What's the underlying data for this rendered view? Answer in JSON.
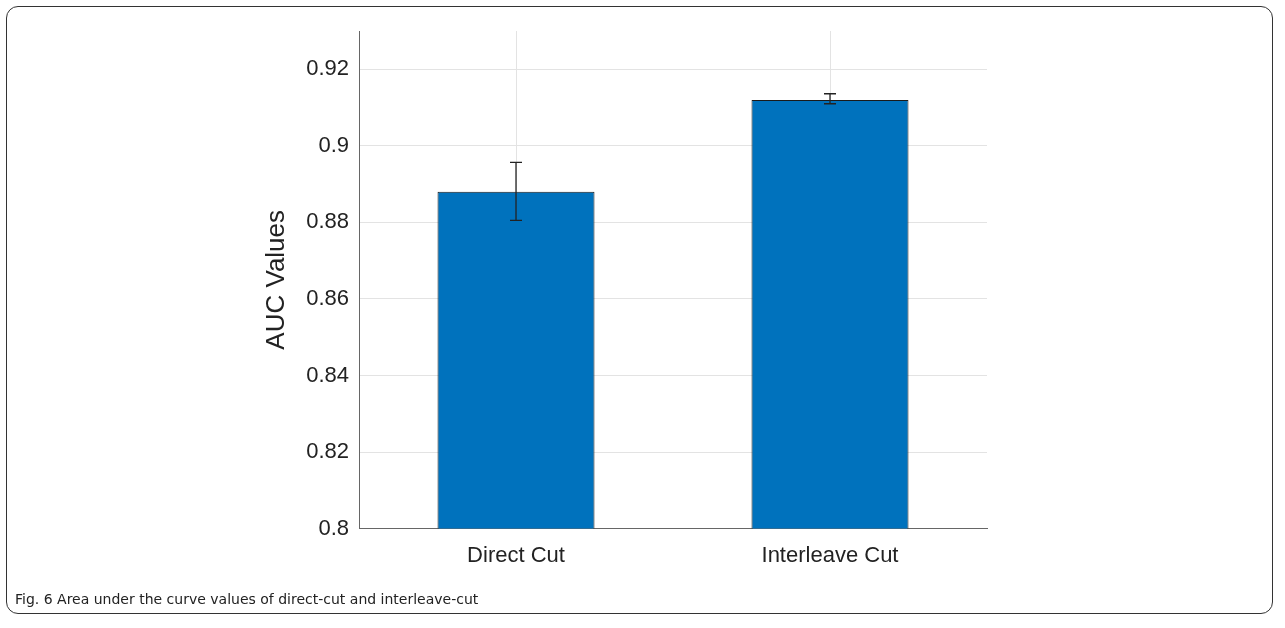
{
  "chart_data": {
    "type": "bar",
    "ylabel": "AUC Values",
    "categories": [
      "Direct Cut",
      "Interleave Cut"
    ],
    "values": [
      0.888,
      0.912
    ],
    "errors": [
      [
        0.8805,
        0.8957
      ],
      [
        0.911,
        0.9136
      ]
    ],
    "color": "#0072bd",
    "ylim": [
      0.8,
      0.93
    ],
    "yticks": [
      0.8,
      0.82,
      0.84,
      0.86,
      0.88,
      0.9,
      0.92
    ],
    "grid": true,
    "annotations": [
      "Fig. 6 Area under the curve values of direct-cut and interleave-cut"
    ]
  }
}
